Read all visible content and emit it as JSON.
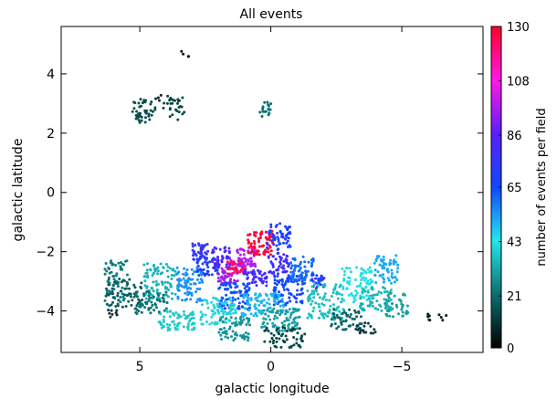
{
  "chart_data": {
    "type": "scatter",
    "title": "All events",
    "xlabel": "galactic longitude",
    "ylabel": "galactic latitude",
    "xlim": [
      8,
      -8.1
    ],
    "ylim": [
      -5.4,
      5.6
    ],
    "x_ticks": [
      5,
      0,
      -5
    ],
    "x_tick_labels": [
      "5",
      "0",
      "−5"
    ],
    "y_ticks": [
      4,
      2,
      0,
      -2,
      -4
    ],
    "y_tick_labels": [
      "4",
      "2",
      "0",
      "−2",
      "−4"
    ],
    "grid": false,
    "legend": "none",
    "colorbar": {
      "label": "number of events per field",
      "range": [
        0,
        130
      ],
      "ticks": [
        0,
        21,
        43,
        65,
        86,
        108,
        130
      ],
      "tick_labels": [
        "0",
        "21",
        "43",
        "65",
        "86",
        "108",
        "130"
      ],
      "colormap": [
        "#000000",
        "#0b6f70",
        "#24e6ec",
        "#1048ff",
        "#5a20f8",
        "#ff18e8",
        "#ff0028"
      ]
    },
    "fields": [
      {
        "l": 4.85,
        "b": 2.75,
        "w": 0.9,
        "h": 0.8,
        "value": 15,
        "n": 45
      },
      {
        "l": 3.7,
        "b": 2.85,
        "w": 0.8,
        "h": 0.8,
        "value": 14,
        "n": 30
      },
      {
        "l": 4.3,
        "b": 3.2,
        "w": 0.3,
        "h": 0.2,
        "value": 8,
        "n": 4
      },
      {
        "l": 3.3,
        "b": 4.7,
        "w": 0.4,
        "h": 0.3,
        "value": 3,
        "n": 4
      },
      {
        "l": 0.2,
        "b": 2.8,
        "w": 0.5,
        "h": 0.5,
        "value": 22,
        "n": 18
      },
      {
        "l": 5.9,
        "b": -3.0,
        "w": 0.9,
        "h": 1.4,
        "value": 24,
        "n": 60
      },
      {
        "l": 5.6,
        "b": -3.4,
        "w": 1.4,
        "h": 1.0,
        "value": 18,
        "n": 60
      },
      {
        "l": 4.2,
        "b": -3.0,
        "w": 1.3,
        "h": 1.2,
        "value": 34,
        "n": 90
      },
      {
        "l": 4.6,
        "b": -3.7,
        "w": 1.3,
        "h": 0.8,
        "value": 22,
        "n": 60
      },
      {
        "l": 3.6,
        "b": -4.3,
        "w": 1.4,
        "h": 0.7,
        "value": 38,
        "n": 70
      },
      {
        "l": 3.1,
        "b": -3.1,
        "w": 1.0,
        "h": 1.2,
        "value": 55,
        "n": 80
      },
      {
        "l": 2.7,
        "b": -2.0,
        "w": 0.6,
        "h": 0.6,
        "value": 76,
        "n": 40
      },
      {
        "l": 2.4,
        "b": -2.5,
        "w": 0.9,
        "h": 0.6,
        "value": 70,
        "n": 50
      },
      {
        "l": 1.9,
        "b": -2.2,
        "w": 0.7,
        "h": 0.7,
        "value": 84,
        "n": 50
      },
      {
        "l": 1.6,
        "b": -2.8,
        "w": 0.8,
        "h": 0.6,
        "value": 96,
        "n": 45
      },
      {
        "l": 1.3,
        "b": -2.5,
        "w": 0.7,
        "h": 0.5,
        "value": 122,
        "n": 55
      },
      {
        "l": 0.9,
        "b": -2.2,
        "w": 0.8,
        "h": 0.6,
        "value": 98,
        "n": 55
      },
      {
        "l": 0.4,
        "b": -1.7,
        "w": 1.0,
        "h": 0.8,
        "value": 128,
        "n": 70
      },
      {
        "l": 0.6,
        "b": -2.9,
        "w": 0.9,
        "h": 0.6,
        "value": 80,
        "n": 50
      },
      {
        "l": -0.3,
        "b": -1.5,
        "w": 0.9,
        "h": 0.9,
        "value": 70,
        "n": 60
      },
      {
        "l": -0.3,
        "b": -2.4,
        "w": 0.8,
        "h": 0.7,
        "value": 80,
        "n": 50
      },
      {
        "l": 1.4,
        "b": -3.5,
        "w": 1.2,
        "h": 0.9,
        "value": 64,
        "n": 90
      },
      {
        "l": -0.7,
        "b": -3.3,
        "w": 1.2,
        "h": 1.0,
        "value": 66,
        "n": 90
      },
      {
        "l": -1.2,
        "b": -2.6,
        "w": 0.9,
        "h": 0.9,
        "value": 60,
        "n": 60
      },
      {
        "l": -1.8,
        "b": -3.0,
        "w": 0.5,
        "h": 0.5,
        "value": 70,
        "n": 30
      },
      {
        "l": 0.3,
        "b": -3.8,
        "w": 1.6,
        "h": 0.8,
        "value": 50,
        "n": 90
      },
      {
        "l": 2.0,
        "b": -4.0,
        "w": 1.4,
        "h": 0.9,
        "value": 40,
        "n": 80
      },
      {
        "l": 1.4,
        "b": -4.6,
        "w": 1.2,
        "h": 0.8,
        "value": 28,
        "n": 60
      },
      {
        "l": -0.4,
        "b": -4.3,
        "w": 1.5,
        "h": 0.8,
        "value": 30,
        "n": 80
      },
      {
        "l": -0.5,
        "b": -4.9,
        "w": 1.6,
        "h": 0.7,
        "value": 14,
        "n": 60
      },
      {
        "l": -2.1,
        "b": -3.7,
        "w": 1.4,
        "h": 1.2,
        "value": 36,
        "n": 90
      },
      {
        "l": -2.9,
        "b": -4.3,
        "w": 1.2,
        "h": 0.7,
        "value": 20,
        "n": 50
      },
      {
        "l": -3.3,
        "b": -3.1,
        "w": 1.2,
        "h": 1.2,
        "value": 42,
        "n": 80
      },
      {
        "l": -4.0,
        "b": -3.6,
        "w": 1.2,
        "h": 0.8,
        "value": 34,
        "n": 60
      },
      {
        "l": -4.4,
        "b": -2.6,
        "w": 0.9,
        "h": 1.0,
        "value": 52,
        "n": 60
      },
      {
        "l": -4.8,
        "b": -3.8,
        "w": 0.9,
        "h": 0.8,
        "value": 30,
        "n": 40
      },
      {
        "l": -3.6,
        "b": -4.6,
        "w": 0.8,
        "h": 0.4,
        "value": 12,
        "n": 20
      },
      {
        "l": 6.0,
        "b": -4.1,
        "w": 0.4,
        "h": 0.3,
        "value": 10,
        "n": 8
      },
      {
        "l": -6.3,
        "b": -4.2,
        "w": 0.8,
        "h": 0.3,
        "value": 6,
        "n": 10
      }
    ]
  }
}
